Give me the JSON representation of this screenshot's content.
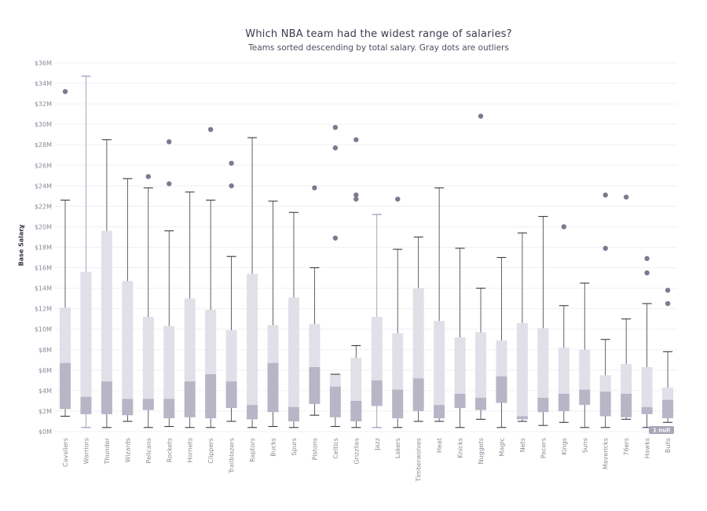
{
  "title": "Which NBA team had the widest range of salaries?",
  "subtitle": "Teams sorted descending by total salary. Gray dots are outliers",
  "null_badge": "1 null",
  "colors": {
    "box_lower": "#b7b5c6",
    "box_upper": "#e1dfe7",
    "whisker": "#3a3a48",
    "whisker_alt": "#8f8fb0",
    "outlier": "#7b7a8f",
    "grid": "#f0f0f3",
    "badge": "#a8a7b8"
  },
  "chart_data": {
    "type": "box",
    "title": "Which NBA team had the widest range of salaries?",
    "subtitle": "Teams sorted descending by total salary. Gray dots are outliers",
    "ylabel": "Base Salary",
    "xlabel": "",
    "ylim": [
      0,
      36
    ],
    "y_unit": "$M",
    "y_ticks": [
      "$0M",
      "$2M",
      "$4M",
      "$6M",
      "$8M",
      "$10M",
      "$12M",
      "$14M",
      "$16M",
      "$18M",
      "$20M",
      "$22M",
      "$24M",
      "$26M",
      "$28M",
      "$30M",
      "$32M",
      "$34M",
      "$36M"
    ],
    "y_tick_values": [
      0,
      2,
      4,
      6,
      8,
      10,
      12,
      14,
      16,
      18,
      20,
      22,
      24,
      26,
      28,
      30,
      32,
      34,
      36
    ],
    "grid": true,
    "teams": [
      {
        "name": "Cavaliers",
        "min": 1.5,
        "q1": 2.2,
        "median": 6.7,
        "q3": 12.1,
        "max": 22.6,
        "outliers": [
          33.2
        ]
      },
      {
        "name": "Warriors",
        "min": 0.4,
        "q1": 1.7,
        "median": 3.4,
        "q3": 15.6,
        "max": 34.7,
        "outliers": []
      },
      {
        "name": "Thunder",
        "min": 0.4,
        "q1": 1.7,
        "median": 4.9,
        "q3": 19.6,
        "max": 28.5,
        "outliers": []
      },
      {
        "name": "Wizards",
        "min": 1.0,
        "q1": 1.6,
        "median": 3.2,
        "q3": 14.7,
        "max": 24.7,
        "outliers": []
      },
      {
        "name": "Pelicans",
        "min": 0.4,
        "q1": 2.1,
        "median": 3.2,
        "q3": 11.2,
        "max": 23.8,
        "outliers": [
          24.9
        ]
      },
      {
        "name": "Rockets",
        "min": 0.5,
        "q1": 1.3,
        "median": 3.2,
        "q3": 10.3,
        "max": 19.6,
        "outliers": [
          24.2,
          28.3
        ]
      },
      {
        "name": "Hornets",
        "min": 0.4,
        "q1": 1.4,
        "median": 4.9,
        "q3": 13.0,
        "max": 23.4,
        "outliers": []
      },
      {
        "name": "Clippers",
        "min": 0.4,
        "q1": 1.3,
        "median": 5.6,
        "q3": 11.9,
        "max": 22.6,
        "outliers": [
          29.5
        ]
      },
      {
        "name": "Trailblazers",
        "min": 1.0,
        "q1": 2.3,
        "median": 4.9,
        "q3": 9.9,
        "max": 17.1,
        "outliers": [
          24.0,
          26.2
        ]
      },
      {
        "name": "Raptors",
        "min": 0.4,
        "q1": 1.2,
        "median": 2.6,
        "q3": 15.4,
        "max": 28.7,
        "outliers": []
      },
      {
        "name": "Bucks",
        "min": 0.5,
        "q1": 1.9,
        "median": 6.7,
        "q3": 10.4,
        "max": 22.5,
        "outliers": []
      },
      {
        "name": "Spurs",
        "min": 0.4,
        "q1": 1.0,
        "median": 2.4,
        "q3": 13.1,
        "max": 21.4,
        "outliers": []
      },
      {
        "name": "Pistons",
        "min": 1.6,
        "q1": 2.7,
        "median": 6.3,
        "q3": 10.5,
        "max": 16.0,
        "outliers": [
          23.8
        ]
      },
      {
        "name": "Celtics",
        "min": 0.5,
        "q1": 1.4,
        "median": 4.4,
        "q3": 5.6,
        "max": 5.6,
        "outliers": [
          18.9,
          27.7,
          29.7
        ]
      },
      {
        "name": "Grizzlies",
        "min": 0.4,
        "q1": 1.0,
        "median": 3.0,
        "q3": 7.2,
        "max": 8.4,
        "outliers": [
          22.7,
          23.1,
          28.5
        ]
      },
      {
        "name": "Jazz",
        "min": 0.4,
        "q1": 2.5,
        "median": 5.0,
        "q3": 11.2,
        "max": 21.2,
        "outliers": []
      },
      {
        "name": "Lakers",
        "min": 0.4,
        "q1": 1.3,
        "median": 4.1,
        "q3": 9.6,
        "max": 17.8,
        "outliers": [
          22.7
        ]
      },
      {
        "name": "Timberwolves",
        "min": 1.0,
        "q1": 2.0,
        "median": 5.2,
        "q3": 14.0,
        "max": 19.0,
        "outliers": []
      },
      {
        "name": "Heat",
        "min": 1.0,
        "q1": 1.3,
        "median": 2.6,
        "q3": 10.8,
        "max": 23.8,
        "outliers": []
      },
      {
        "name": "Knicks",
        "min": 0.4,
        "q1": 2.3,
        "median": 3.7,
        "q3": 9.2,
        "max": 17.9,
        "outliers": []
      },
      {
        "name": "Nuggets",
        "min": 1.2,
        "q1": 2.1,
        "median": 3.3,
        "q3": 9.7,
        "max": 14.0,
        "outliers": [
          30.8
        ]
      },
      {
        "name": "Magic",
        "min": 0.4,
        "q1": 2.8,
        "median": 5.4,
        "q3": 8.9,
        "max": 17.0,
        "outliers": []
      },
      {
        "name": "Nets",
        "min": 1.0,
        "q1": 1.2,
        "median": 1.5,
        "q3": 10.6,
        "max": 19.4,
        "outliers": []
      },
      {
        "name": "Pacers",
        "min": 0.6,
        "q1": 1.9,
        "median": 3.3,
        "q3": 10.1,
        "max": 21.0,
        "outliers": []
      },
      {
        "name": "Kings",
        "min": 0.9,
        "q1": 2.0,
        "median": 3.7,
        "q3": 8.2,
        "max": 12.3,
        "outliers": [
          20.0
        ]
      },
      {
        "name": "Suns",
        "min": 0.4,
        "q1": 2.6,
        "median": 4.1,
        "q3": 8.0,
        "max": 14.5,
        "outliers": []
      },
      {
        "name": "Mavericks",
        "min": 0.4,
        "q1": 1.5,
        "median": 3.9,
        "q3": 5.5,
        "max": 9.0,
        "outliers": [
          17.9,
          23.1
        ]
      },
      {
        "name": "76ers",
        "min": 1.2,
        "q1": 1.4,
        "median": 3.7,
        "q3": 6.6,
        "max": 11.0,
        "outliers": [
          22.9
        ]
      },
      {
        "name": "Hawks",
        "min": 0.4,
        "q1": 1.7,
        "median": 2.4,
        "q3": 6.3,
        "max": 12.5,
        "outliers": [
          15.5,
          16.9
        ]
      },
      {
        "name": "Bulls",
        "min": 0.9,
        "q1": 1.3,
        "median": 3.1,
        "q3": 4.3,
        "max": 7.8,
        "outliers": [
          12.5,
          13.8
        ]
      }
    ]
  }
}
